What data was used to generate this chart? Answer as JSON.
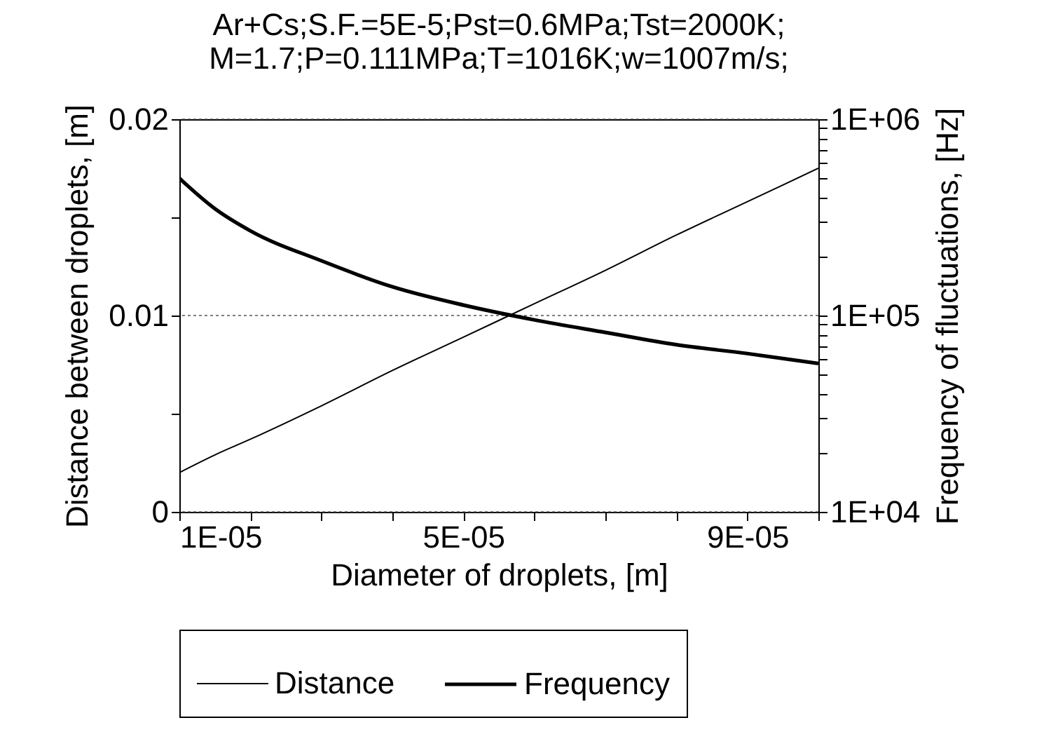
{
  "chart_data": {
    "type": "line",
    "title": "Ar+Cs;S.F.=5E-5;Pst=0.6MPa;Tst=2000K;\nM=1.7;P=0.111MPa;T=1016K;w=1007m/s;",
    "xlabel": "Diameter of droplets, [m]",
    "ylabel": "Distance between droplets, [m]",
    "y2label": "Frequency of fluctuations, [Hz]",
    "x": [
      1e-05,
      1.5e-05,
      2e-05,
      3e-05,
      4e-05,
      5e-05,
      6e-05,
      7e-05,
      8e-05,
      9e-05,
      0.0001
    ],
    "series": [
      {
        "name": "Distance",
        "color": "#000000",
        "values": [
          0.002,
          0.0029,
          0.0037,
          0.0054,
          0.0072,
          0.0089,
          0.0106,
          0.0123,
          0.0141,
          0.0158,
          0.0175
        ]
      },
      {
        "name": "Frequency",
        "color": "#000000",
        "axis": "y2",
        "values": [
          500000,
          350000,
          270000,
          190000,
          140000,
          113000,
          95000,
          82000,
          71000,
          64000,
          57000
        ]
      }
    ],
    "xlim": [
      1e-05,
      0.0001
    ],
    "xticks": [
      {
        "value": 1e-05,
        "label": "1E-05"
      },
      {
        "value": 2e-05,
        "label": null
      },
      {
        "value": 3e-05,
        "label": null
      },
      {
        "value": 4e-05,
        "label": null
      },
      {
        "value": 5e-05,
        "label": "5E-05"
      },
      {
        "value": 6e-05,
        "label": null
      },
      {
        "value": 7e-05,
        "label": null
      },
      {
        "value": 8e-05,
        "label": null
      },
      {
        "value": 9e-05,
        "label": "9E-05"
      },
      {
        "value": 0.0001,
        "label": null
      }
    ],
    "ylim": [
      0,
      0.02
    ],
    "yticks": [
      0,
      {
        "value": 0.005,
        "label": null
      },
      0.01,
      {
        "value": 0.015,
        "label": null
      },
      0.02
    ],
    "y2lim": [
      10000,
      1000000
    ],
    "y2ticks": [
      {
        "value": 10000,
        "label": "1E+04"
      },
      {
        "value": 20000,
        "label": null
      },
      {
        "value": 30000,
        "label": null
      },
      {
        "value": 40000,
        "label": null
      },
      {
        "value": 50000,
        "label": null
      },
      {
        "value": 60000,
        "label": null
      },
      {
        "value": 70000,
        "label": null
      },
      {
        "value": 80000,
        "label": null
      },
      {
        "value": 90000,
        "label": null
      },
      {
        "value": 100000,
        "label": "1E+05"
      },
      {
        "value": 200000,
        "label": null
      },
      {
        "value": 300000,
        "label": null
      },
      {
        "value": 400000,
        "label": null
      },
      {
        "value": 500000,
        "label": null
      },
      {
        "value": 600000,
        "label": null
      },
      {
        "value": 700000,
        "label": null
      },
      {
        "value": 800000,
        "label": null
      },
      {
        "value": 900000,
        "label": null
      },
      {
        "value": 1000000,
        "label": "1E+06"
      }
    ],
    "log": "y2",
    "grid": "y",
    "legend": "bottom",
    "marker": "none",
    "line_style": "solid"
  }
}
